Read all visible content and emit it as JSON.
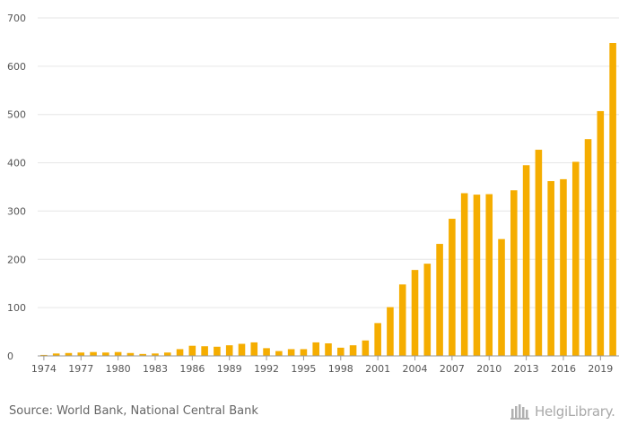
{
  "chart_data": {
    "type": "bar",
    "x": [
      1974,
      1975,
      1976,
      1977,
      1978,
      1979,
      1980,
      1981,
      1982,
      1983,
      1984,
      1985,
      1986,
      1987,
      1988,
      1989,
      1990,
      1991,
      1992,
      1993,
      1994,
      1995,
      1996,
      1997,
      1998,
      1999,
      2000,
      2001,
      2002,
      2003,
      2004,
      2005,
      2006,
      2007,
      2008,
      2009,
      2010,
      2011,
      2012,
      2013,
      2014,
      2015,
      2016,
      2017,
      2018,
      2019,
      2020
    ],
    "values": [
      2,
      5,
      6,
      7,
      8,
      7,
      8,
      6,
      4,
      5,
      7,
      14,
      21,
      20,
      19,
      22,
      25,
      28,
      16,
      10,
      14,
      14,
      28,
      26,
      17,
      22,
      32,
      68,
      101,
      148,
      178,
      191,
      232,
      284,
      337,
      334,
      335,
      242,
      343,
      395,
      427,
      362,
      366,
      402,
      449,
      507,
      648
    ],
    "xtick_labels": [
      "1974",
      "1977",
      "1980",
      "1983",
      "1986",
      "1989",
      "1992",
      "1995",
      "1998",
      "2001",
      "2004",
      "2007",
      "2010",
      "2013",
      "2016",
      "2019"
    ],
    "xtick_years": [
      1974,
      1977,
      1980,
      1983,
      1986,
      1989,
      1992,
      1995,
      1998,
      2001,
      2004,
      2007,
      2010,
      2013,
      2016,
      2019
    ],
    "yticks": [
      0,
      100,
      200,
      300,
      400,
      500,
      600,
      700
    ],
    "ylim": [
      0,
      700
    ],
    "grid": true,
    "bar_color": "#f5ad00",
    "grid_color": "#e6e6e6",
    "title": "",
    "xlabel": "",
    "ylabel": ""
  },
  "source_text": "Source: World Bank, National Central Bank",
  "brand": {
    "name": "HelgiLibrary.",
    "icon": "helgi-building-icon"
  }
}
